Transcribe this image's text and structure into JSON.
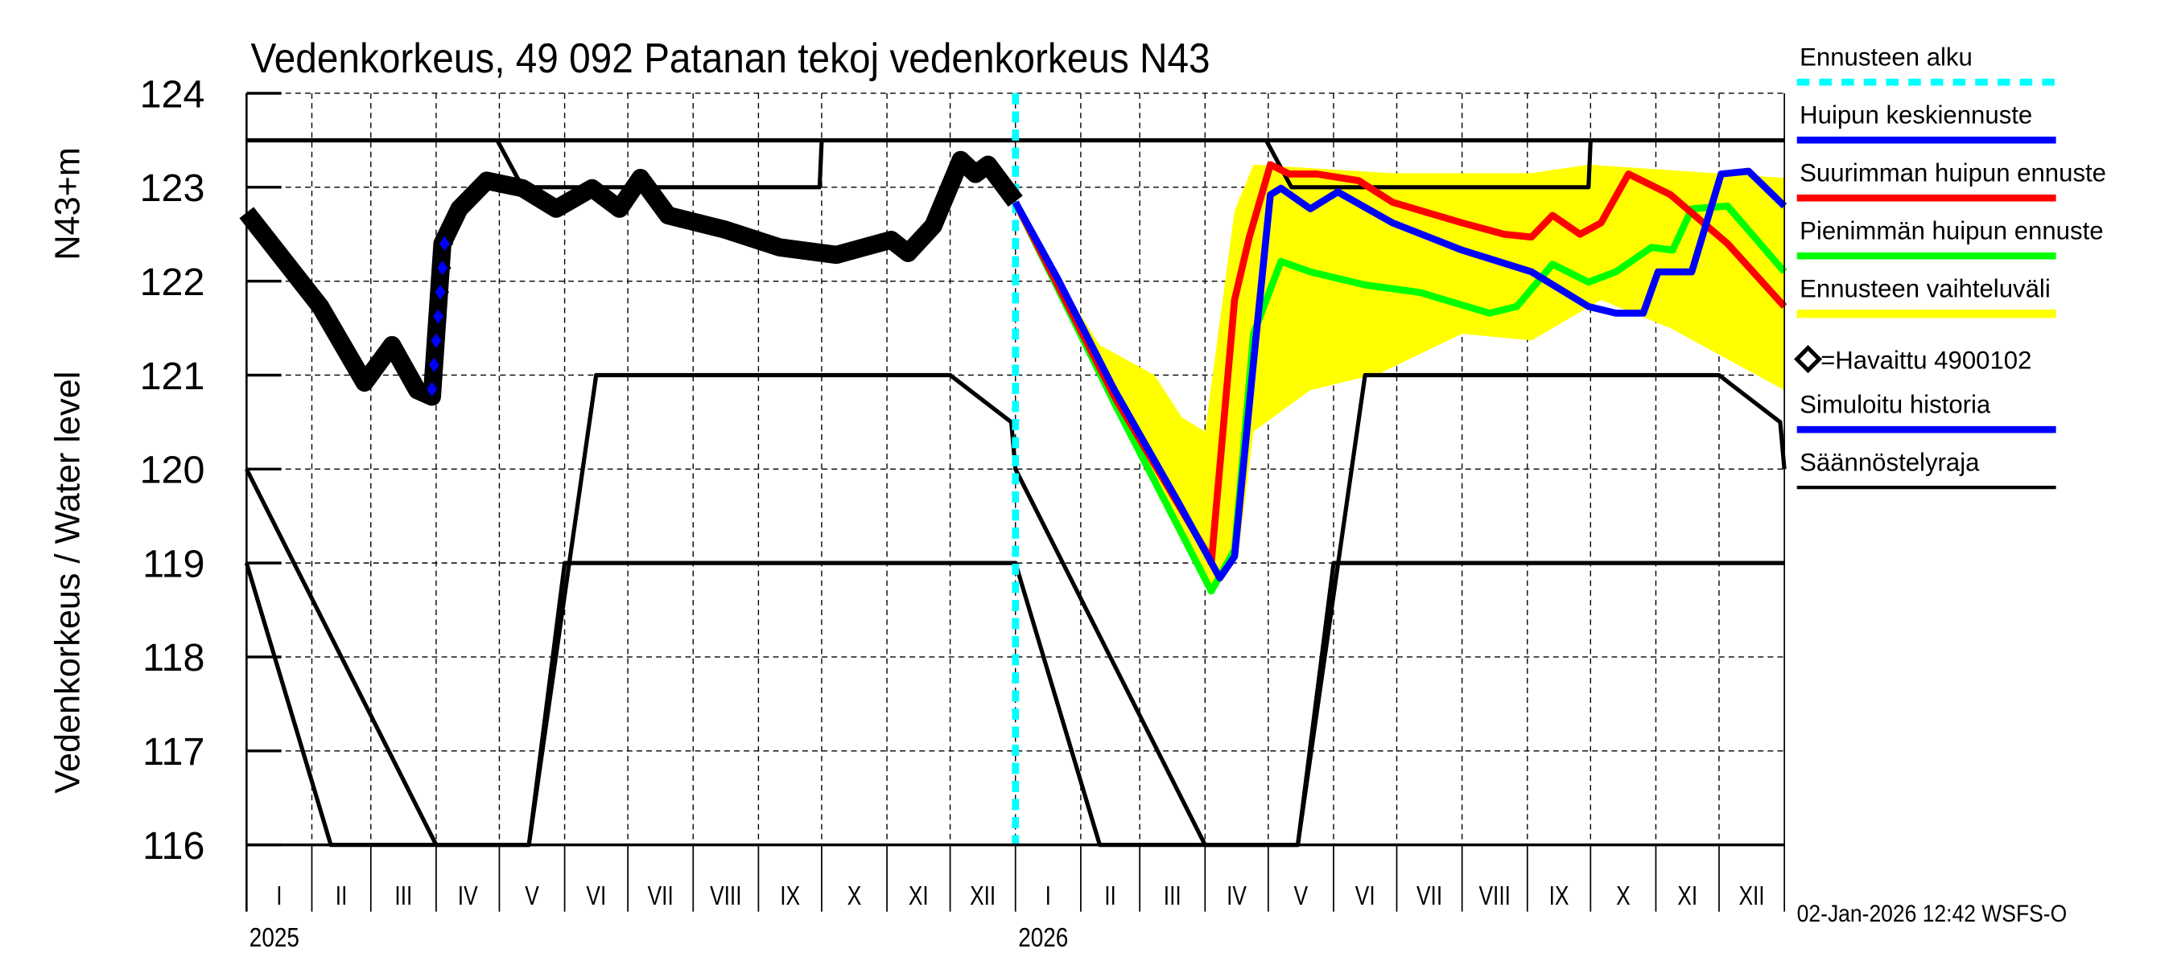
{
  "chart_data": {
    "type": "line",
    "title": "Vedenkorkeus, 49 092 Patanan tekoj vedenkorkeus N43",
    "ylabel_left": "Vedenkorkeus / Water level",
    "ylabel_right": "N43+m",
    "ylim": [
      116,
      124
    ],
    "yticks": [
      "116",
      "117",
      "118",
      "119",
      "120",
      "121",
      "122",
      "123",
      "124"
    ],
    "xlim": [
      "2025-01-01",
      "2027-01-01"
    ],
    "month_labels": [
      "I",
      "II",
      "III",
      "IV",
      "V",
      "VI",
      "VII",
      "VIII",
      "IX",
      "X",
      "XI",
      "XII",
      "I",
      "II",
      "III",
      "IV",
      "V",
      "VI",
      "VII",
      "VIII",
      "IX",
      "X",
      "XI",
      "XII"
    ],
    "year_labels": [
      "2025",
      "2026"
    ],
    "grid": true,
    "legend_placement": "right",
    "timestamp": "02-Jan-2026 12:42 WSFS-O",
    "forecast_start": "2026-01-01",
    "legend": [
      {
        "label": "Ennusteen alku",
        "color": "#00FFFF",
        "style": "dashed"
      },
      {
        "label": "Huipun keskiennuste",
        "color": "#0000FF",
        "style": "line"
      },
      {
        "label": "Suurimman huipun ennuste",
        "color": "#FF0000",
        "style": "line"
      },
      {
        "label": "Pienimmän huipun ennuste",
        "color": "#00FF00",
        "style": "line"
      },
      {
        "label": "Ennusteen vaihteluväli",
        "color": "#FFFF00",
        "style": "band"
      },
      {
        "label": "=Havaittu 4900102",
        "color": "#000000",
        "style": "diamond"
      },
      {
        "label": "Simuloitu historia",
        "color": "#0000FF",
        "style": "line"
      },
      {
        "label": "Säännöstelyraja",
        "color": "#000000",
        "style": "thin"
      }
    ],
    "observed": [
      [
        "2025-01-01",
        122.73
      ],
      [
        "2025-02-05",
        121.73
      ],
      [
        "2025-02-26",
        120.92
      ],
      [
        "2025-03-11",
        121.32
      ],
      [
        "2025-03-23",
        120.84
      ],
      [
        "2025-03-30",
        120.77
      ],
      [
        "2025-04-04",
        122.4
      ],
      [
        "2025-04-12",
        122.77
      ],
      [
        "2025-04-25",
        123.07
      ],
      [
        "2025-05-12",
        122.99
      ],
      [
        "2025-05-28",
        122.77
      ],
      [
        "2025-06-14",
        122.99
      ],
      [
        "2025-06-27",
        122.77
      ],
      [
        "2025-07-07",
        123.1
      ],
      [
        "2025-07-20",
        122.7
      ],
      [
        "2025-08-16",
        122.55
      ],
      [
        "2025-09-11",
        122.36
      ],
      [
        "2025-10-08",
        122.28
      ],
      [
        "2025-10-21",
        122.36
      ],
      [
        "2025-11-03",
        122.44
      ],
      [
        "2025-11-11",
        122.3
      ],
      [
        "2025-11-23",
        122.59
      ],
      [
        "2025-12-06",
        123.29
      ],
      [
        "2025-12-13",
        123.14
      ],
      [
        "2025-12-19",
        123.24
      ],
      [
        "2026-01-01",
        122.85
      ]
    ],
    "simulated_history_blue_diamonds": [
      [
        "2025-03-30",
        120.85
      ],
      [
        "2025-04-05",
        122.4
      ]
    ],
    "mean_forecast": [
      [
        "2026-01-01",
        122.84
      ],
      [
        "2026-01-21",
        122.03
      ],
      [
        "2026-02-17",
        120.84
      ],
      [
        "2026-03-19",
        119.66
      ],
      [
        "2026-04-08",
        118.84
      ],
      [
        "2026-04-15",
        119.07
      ],
      [
        "2026-04-24",
        121.14
      ],
      [
        "2026-05-02",
        122.92
      ],
      [
        "2026-05-07",
        122.99
      ],
      [
        "2026-05-21",
        122.77
      ],
      [
        "2026-06-03",
        122.95
      ],
      [
        "2026-06-29",
        122.62
      ],
      [
        "2026-08-01",
        122.33
      ],
      [
        "2026-09-03",
        122.1
      ],
      [
        "2026-09-30",
        121.73
      ],
      [
        "2026-10-13",
        121.66
      ],
      [
        "2026-10-26",
        121.66
      ],
      [
        "2026-11-02",
        122.1
      ],
      [
        "2026-11-18",
        122.1
      ],
      [
        "2026-12-02",
        123.14
      ],
      [
        "2026-12-15",
        123.17
      ],
      [
        "2027-01-01",
        122.8
      ]
    ],
    "max_forecast": [
      [
        "2026-01-01",
        122.84
      ],
      [
        "2026-02-17",
        120.77
      ],
      [
        "2026-04-01",
        119.14
      ],
      [
        "2026-04-04",
        119.0
      ],
      [
        "2026-04-15",
        121.8
      ],
      [
        "2026-04-22",
        122.47
      ],
      [
        "2026-05-02",
        123.24
      ],
      [
        "2026-05-11",
        123.14
      ],
      [
        "2026-05-24",
        123.14
      ],
      [
        "2026-06-13",
        123.07
      ],
      [
        "2026-06-29",
        122.84
      ],
      [
        "2026-08-01",
        122.62
      ],
      [
        "2026-08-21",
        122.5
      ],
      [
        "2026-09-03",
        122.47
      ],
      [
        "2026-09-13",
        122.7
      ],
      [
        "2026-09-26",
        122.5
      ],
      [
        "2026-10-06",
        122.62
      ],
      [
        "2026-10-19",
        123.14
      ],
      [
        "2026-11-08",
        122.92
      ],
      [
        "2026-12-05",
        122.4
      ],
      [
        "2027-01-01",
        121.73
      ]
    ],
    "min_forecast": [
      [
        "2026-01-01",
        122.84
      ],
      [
        "2026-02-17",
        120.7
      ],
      [
        "2026-04-04",
        118.7
      ],
      [
        "2026-04-15",
        119.14
      ],
      [
        "2026-04-24",
        121.44
      ],
      [
        "2026-05-07",
        122.21
      ],
      [
        "2026-05-21",
        122.1
      ],
      [
        "2026-06-16",
        121.96
      ],
      [
        "2026-07-12",
        121.88
      ],
      [
        "2026-08-14",
        121.66
      ],
      [
        "2026-08-27",
        121.73
      ],
      [
        "2026-09-13",
        122.18
      ],
      [
        "2026-09-30",
        121.99
      ],
      [
        "2026-10-13",
        122.1
      ],
      [
        "2026-10-30",
        122.36
      ],
      [
        "2026-11-09",
        122.33
      ],
      [
        "2026-11-18",
        122.77
      ],
      [
        "2026-12-05",
        122.8
      ],
      [
        "2027-01-01",
        122.1
      ]
    ],
    "range_upper": [
      [
        "2026-01-01",
        122.84
      ],
      [
        "2026-01-21",
        122.03
      ],
      [
        "2026-02-10",
        121.32
      ],
      [
        "2026-03-08",
        121.0
      ],
      [
        "2026-03-21",
        120.55
      ],
      [
        "2026-04-01",
        120.4
      ],
      [
        "2026-04-15",
        122.75
      ],
      [
        "2026-04-24",
        123.24
      ],
      [
        "2026-06-29",
        123.15
      ],
      [
        "2026-09-03",
        123.15
      ],
      [
        "2026-09-30",
        123.24
      ],
      [
        "2027-01-01",
        123.1
      ]
    ],
    "range_lower": [
      [
        "2026-01-01",
        122.84
      ],
      [
        "2026-01-21",
        122.03
      ],
      [
        "2026-02-17",
        120.7
      ],
      [
        "2026-04-04",
        118.7
      ],
      [
        "2026-04-17",
        119.14
      ],
      [
        "2026-04-24",
        120.4
      ],
      [
        "2026-05-21",
        120.84
      ],
      [
        "2026-06-23",
        121.02
      ],
      [
        "2026-08-01",
        121.44
      ],
      [
        "2026-09-03",
        121.37
      ],
      [
        "2026-10-06",
        121.8
      ],
      [
        "2026-11-08",
        121.5
      ],
      [
        "2027-01-01",
        120.84
      ]
    ],
    "regulation_limits": [
      [
        [
          "2025-01-01",
          123.5
        ],
        [
          "2027-01-01",
          123.5
        ]
      ],
      [
        [
          "2025-04-30",
          123.5
        ],
        [
          "2025-05-12",
          123.0
        ],
        [
          "2025-09-30",
          123.0
        ],
        [
          "2025-10-01",
          123.5
        ]
      ],
      [
        [
          "2026-04-30",
          123.5
        ],
        [
          "2026-05-12",
          123.0
        ],
        [
          "2026-09-30",
          123.0
        ],
        [
          "2026-10-01",
          123.5
        ]
      ],
      [
        [
          "2025-01-01",
          120.0
        ],
        [
          "2025-04-01",
          116.0
        ],
        [
          "2025-05-15",
          116.0
        ],
        [
          "2025-06-16",
          121.0
        ],
        [
          "2025-12-01",
          121.0
        ],
        [
          "2025-12-30",
          120.5
        ],
        [
          "2026-01-01",
          120.0
        ],
        [
          "2026-04-01",
          116.0
        ],
        [
          "2026-05-15",
          116.0
        ],
        [
          "2026-06-16",
          121.0
        ],
        [
          "2026-12-01",
          121.0
        ],
        [
          "2026-12-30",
          120.5
        ],
        [
          "2027-01-01",
          120.0
        ]
      ],
      [
        [
          "2025-01-01",
          119.0
        ],
        [
          "2025-02-10",
          116.0
        ],
        [
          "2025-05-15",
          116.0
        ],
        [
          "2025-06-01",
          119.0
        ],
        [
          "2026-01-01",
          119.0
        ],
        [
          "2026-02-10",
          116.0
        ],
        [
          "2026-05-15",
          116.0
        ],
        [
          "2026-06-01",
          119.0
        ],
        [
          "2027-01-01",
          119.0
        ]
      ]
    ]
  }
}
